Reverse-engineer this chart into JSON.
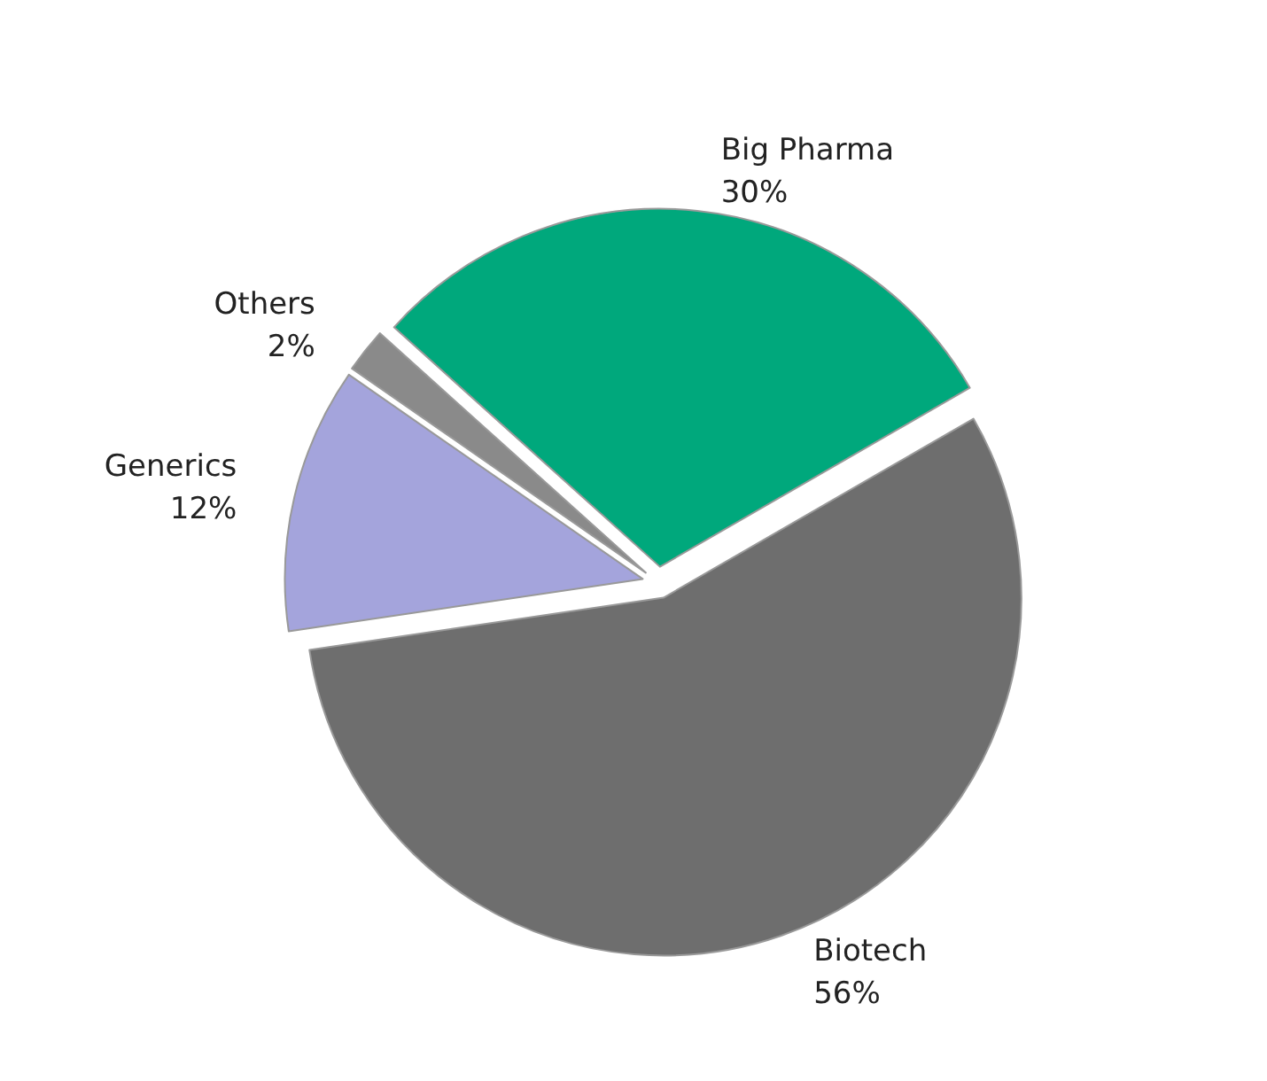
{
  "chart_data": {
    "type": "pie",
    "categories": [
      "Biotech",
      "Generics",
      "Others",
      "Big Pharma"
    ],
    "values": [
      56,
      12,
      2,
      30
    ],
    "colors": [
      "#6e6e6e",
      "#a4a4dc",
      "#8a8a8a",
      "#00a87c"
    ],
    "value_labels": [
      "56%",
      "12%",
      "2%",
      "30%"
    ]
  }
}
